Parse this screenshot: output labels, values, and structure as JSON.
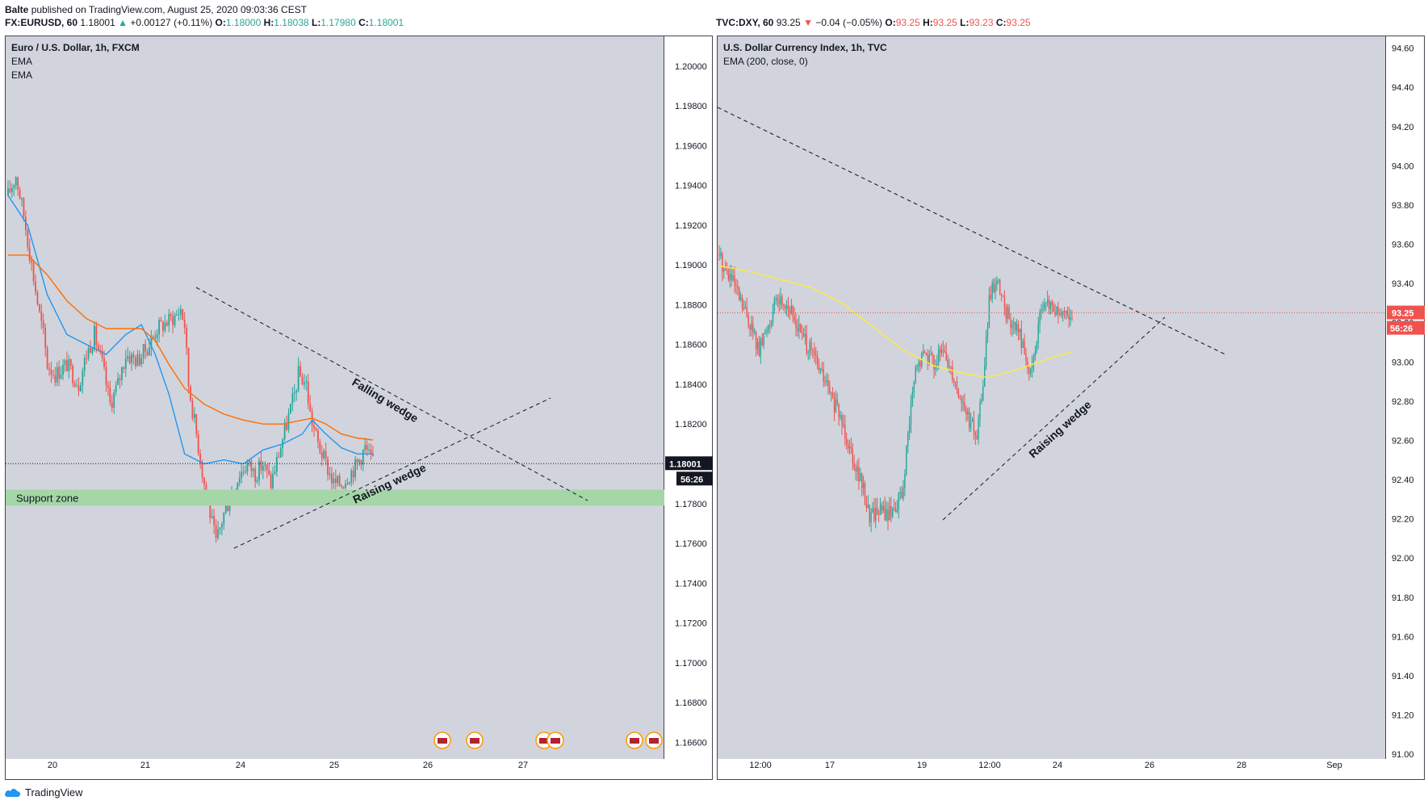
{
  "publisher": {
    "user": "Balte",
    "text": "published on TradingView.com, August 25, 2020 09:03:36 CEST"
  },
  "footer": {
    "brand": "TradingView"
  },
  "left_header": {
    "symbol": "FX:EURUSD, 60",
    "last": "1.18001",
    "change": "+0.00127 (+0.11%)",
    "o_label": "O:",
    "o": "1.18000",
    "h_label": "H:",
    "h": "1.18038",
    "l_label": "L:",
    "l": "1.17980",
    "c_label": "C:",
    "c": "1.18001"
  },
  "right_header": {
    "symbol": "TVC:DXY, 60",
    "last": "93.25",
    "change": "−0.04 (−0.05%)",
    "o_label": "O:",
    "o": "93.25",
    "h_label": "H:",
    "h": "93.25",
    "l_label": "L:",
    "l": "93.23",
    "c_label": "C:",
    "c": "93.25"
  },
  "left_legend": {
    "title": "Euro / U.S. Dollar, 1h, FXCM",
    "ind1": "EMA",
    "ind2": "EMA"
  },
  "right_legend": {
    "title": "U.S. Dollar Currency Index, 1h, TVC",
    "ind1": "EMA (200, close, 0)"
  },
  "colors": {
    "up": "#26a69a",
    "down": "#ef5350",
    "ema_fast": "#2196f3",
    "ema_slow": "#ff6d00",
    "ema200": "#ffeb3b",
    "support": "#a5d6a7",
    "plot_bg": "#d1d4dc"
  },
  "chart_data": [
    {
      "type": "candlestick",
      "symbol": "EURUSD",
      "ylim": [
        1.1652,
        1.2015
      ],
      "yticks": [
        "1.20000",
        "1.19800",
        "1.19600",
        "1.19400",
        "1.19200",
        "1.19000",
        "1.18800",
        "1.18600",
        "1.18400",
        "1.18200",
        "1.18000",
        "1.17800",
        "1.17600",
        "1.17400",
        "1.17200",
        "1.17000",
        "1.16800",
        "1.16600"
      ],
      "xticks": [
        "20",
        "21",
        "24",
        "25",
        "26",
        "27"
      ],
      "last_price_label": "1.18001",
      "countdown": "56:26",
      "support_zone": {
        "label": "Support zone",
        "from": 1.1779,
        "to": 1.1787
      },
      "annotations": [
        {
          "text": "Falling wedge"
        },
        {
          "text": "Raising wedge"
        }
      ],
      "ema_fast": [
        [
          0,
          1.1935
        ],
        [
          10,
          1.192
        ],
        [
          20,
          1.1885
        ],
        [
          30,
          1.1865
        ],
        [
          40,
          1.186
        ],
        [
          50,
          1.1855
        ],
        [
          60,
          1.1865
        ],
        [
          68,
          1.187
        ],
        [
          75,
          1.1855
        ],
        [
          82,
          1.1835
        ],
        [
          90,
          1.1805
        ],
        [
          100,
          1.18
        ],
        [
          110,
          1.1802
        ],
        [
          120,
          1.18
        ],
        [
          130,
          1.1807
        ],
        [
          140,
          1.181
        ],
        [
          150,
          1.1815
        ],
        [
          155,
          1.1822
        ],
        [
          162,
          1.1815
        ],
        [
          170,
          1.1808
        ],
        [
          178,
          1.1805
        ],
        [
          186,
          1.1805
        ]
      ],
      "ema_slow": [
        [
          0,
          1.1905
        ],
        [
          10,
          1.1905
        ],
        [
          20,
          1.1895
        ],
        [
          30,
          1.1882
        ],
        [
          40,
          1.1873
        ],
        [
          50,
          1.1868
        ],
        [
          60,
          1.1868
        ],
        [
          68,
          1.1868
        ],
        [
          75,
          1.1862
        ],
        [
          82,
          1.185
        ],
        [
          90,
          1.1838
        ],
        [
          100,
          1.183
        ],
        [
          110,
          1.1825
        ],
        [
          120,
          1.1822
        ],
        [
          130,
          1.182
        ],
        [
          140,
          1.182
        ],
        [
          150,
          1.1822
        ],
        [
          155,
          1.1823
        ],
        [
          162,
          1.182
        ],
        [
          170,
          1.1815
        ],
        [
          178,
          1.1813
        ],
        [
          186,
          1.1812
        ]
      ]
    },
    {
      "type": "candlestick",
      "symbol": "DXY",
      "ylim": [
        90.98,
        94.66
      ],
      "yticks": [
        "94.60",
        "94.40",
        "94.20",
        "94.00",
        "93.80",
        "93.60",
        "93.40",
        "93.20",
        "93.00",
        "92.80",
        "92.60",
        "92.40",
        "92.20",
        "92.00",
        "91.80",
        "91.60",
        "91.40",
        "91.20",
        "91.00"
      ],
      "xticks": [
        "12:00",
        "17",
        "19",
        "12:00",
        "24",
        "26",
        "28",
        "Sep"
      ],
      "last_price_label": "93.25",
      "countdown": "56:26",
      "annotations": [
        {
          "text": "Raising wedge"
        }
      ],
      "ema200": [
        [
          0,
          93.49
        ],
        [
          20,
          93.46
        ],
        [
          40,
          93.42
        ],
        [
          60,
          93.38
        ],
        [
          80,
          93.3
        ],
        [
          100,
          93.18
        ],
        [
          120,
          93.06
        ],
        [
          140,
          92.98
        ],
        [
          160,
          92.94
        ],
        [
          175,
          92.92
        ],
        [
          190,
          92.95
        ],
        [
          205,
          92.99
        ],
        [
          220,
          93.03
        ],
        [
          230,
          93.05
        ]
      ]
    }
  ]
}
